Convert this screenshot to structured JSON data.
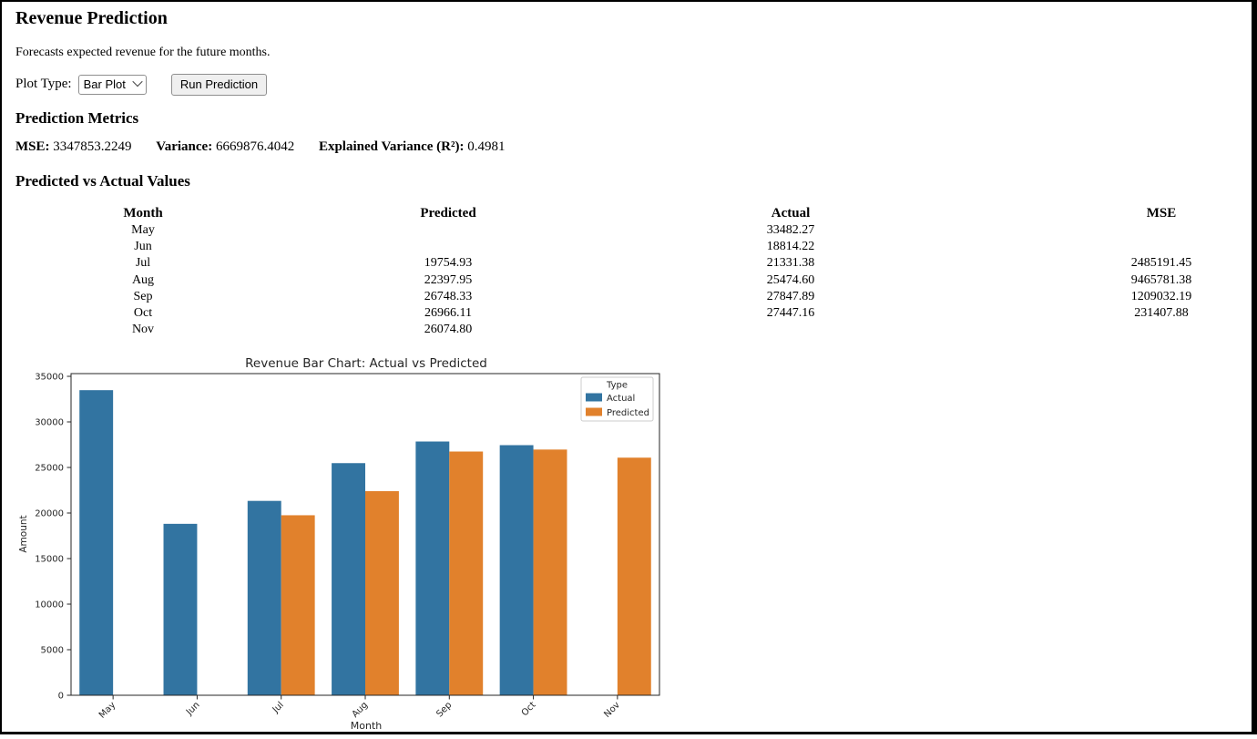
{
  "page": {
    "title": "Revenue Prediction",
    "description": "Forecasts expected revenue for the future months.",
    "plot_type_label": "Plot Type:",
    "plot_type_value": "Bar Plot",
    "run_button_label": "Run Prediction"
  },
  "icons": {
    "select_chevron": "chevron-down"
  },
  "metrics": {
    "heading": "Prediction Metrics",
    "mse_label": "MSE:",
    "mse_value": "3347853.2249",
    "variance_label": "Variance:",
    "variance_value": "6669876.4042",
    "explained_label": "Explained Variance (R²):",
    "explained_value": "0.4981"
  },
  "table": {
    "heading": "Predicted vs Actual Values",
    "columns": [
      "Month",
      "Predicted",
      "Actual",
      "MSE"
    ],
    "rows": [
      {
        "month": "May",
        "predicted": "",
        "actual": "33482.27",
        "mse": ""
      },
      {
        "month": "Jun",
        "predicted": "",
        "actual": "18814.22",
        "mse": ""
      },
      {
        "month": "Jul",
        "predicted": "19754.93",
        "actual": "21331.38",
        "mse": "2485191.45"
      },
      {
        "month": "Aug",
        "predicted": "22397.95",
        "actual": "25474.60",
        "mse": "9465781.38"
      },
      {
        "month": "Sep",
        "predicted": "26748.33",
        "actual": "27847.89",
        "mse": "1209032.19"
      },
      {
        "month": "Oct",
        "predicted": "26966.11",
        "actual": "27447.16",
        "mse": "231407.88"
      },
      {
        "month": "Nov",
        "predicted": "26074.80",
        "actual": "",
        "mse": ""
      }
    ]
  },
  "chart_data": {
    "type": "bar",
    "title": "Revenue Bar Chart: Actual vs Predicted",
    "xlabel": "Month",
    "ylabel": "Amount",
    "categories": [
      "May",
      "Jun",
      "Jul",
      "Aug",
      "Sep",
      "Oct",
      "Nov"
    ],
    "series": [
      {
        "name": "Actual",
        "color": "#3274a1",
        "values": [
          33482.27,
          18814.22,
          21331.38,
          25474.6,
          27847.89,
          27447.16,
          null
        ]
      },
      {
        "name": "Predicted",
        "color": "#e1812c",
        "values": [
          null,
          null,
          19754.93,
          22397.95,
          26748.33,
          26966.11,
          26074.8
        ]
      }
    ],
    "ylim": [
      0,
      35000
    ],
    "ytick_step": 5000,
    "yticks": [
      0,
      5000,
      10000,
      15000,
      20000,
      25000,
      30000,
      35000
    ],
    "xtick_rotation": 45,
    "legend_title": "Type",
    "legend_position": "upper right",
    "grid": false,
    "axis_color": "#262626"
  }
}
